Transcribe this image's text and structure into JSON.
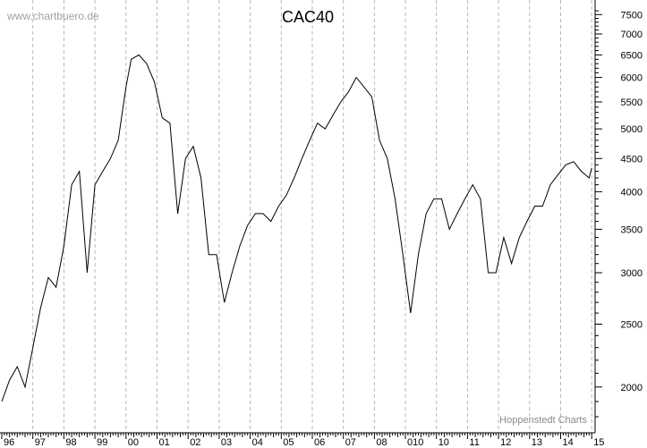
{
  "watermark": "www.chartbuero.de",
  "credit": "Hoppenstedt Charts",
  "chart_data": {
    "type": "line",
    "title": "CAC40",
    "xlabel": "",
    "ylabel": "",
    "y_scale": "log",
    "ylim": [
      1700,
      7700
    ],
    "grid": "vertical dashed at year boundaries",
    "line_color": "#000000",
    "x_tick_labels": [
      "96",
      "97",
      "98",
      "99",
      "00",
      "01",
      "02",
      "03",
      "04",
      "05",
      "06",
      "07",
      "08",
      "010",
      "10",
      "11",
      "12",
      "13",
      "14",
      "15"
    ],
    "y_tick_labels": [
      "2000",
      "2500",
      "3000",
      "3500",
      "4000",
      "4500",
      "5000",
      "5500",
      "6000",
      "6500",
      "7000",
      "7500"
    ],
    "y_tick_values": [
      2000,
      2500,
      3000,
      3500,
      4000,
      4500,
      5000,
      5500,
      6000,
      6500,
      7000,
      7500
    ],
    "series": [
      {
        "x": [
          "1996-01",
          "1996-04",
          "1996-07",
          "1996-10",
          "1997-01",
          "1997-04",
          "1997-07",
          "1997-10",
          "1998-01",
          "1998-04",
          "1998-07",
          "1998-10",
          "1999-01",
          "1999-04",
          "1999-07",
          "1999-10",
          "2000-01",
          "2000-03",
          "2000-06",
          "2000-09",
          "2000-12",
          "2001-03",
          "2001-06",
          "2001-09",
          "2001-12",
          "2002-03",
          "2002-06",
          "2002-09",
          "2002-12",
          "2003-03",
          "2003-06",
          "2003-09",
          "2003-12",
          "2004-03",
          "2004-06",
          "2004-09",
          "2004-12",
          "2005-03",
          "2005-06",
          "2005-09",
          "2005-12",
          "2006-03",
          "2006-06",
          "2006-09",
          "2006-12",
          "2007-03",
          "2007-06",
          "2007-09",
          "2007-12",
          "2008-03",
          "2008-06",
          "2008-09",
          "2008-12",
          "2009-03",
          "2009-06",
          "2009-09",
          "2009-12",
          "2010-03",
          "2010-06",
          "2010-09",
          "2010-12",
          "2011-03",
          "2011-06",
          "2011-09",
          "2011-12",
          "2012-03",
          "2012-06",
          "2012-09",
          "2012-12",
          "2013-03",
          "2013-06",
          "2013-09",
          "2013-12",
          "2014-03",
          "2014-06",
          "2014-09",
          "2014-12",
          "2015-01"
        ],
        "values": [
          1900,
          2050,
          2150,
          2000,
          2300,
          2650,
          2950,
          2850,
          3300,
          4100,
          4300,
          3000,
          4100,
          4300,
          4500,
          4800,
          5800,
          6400,
          6500,
          6300,
          5900,
          5200,
          5100,
          3700,
          4500,
          4700,
          4200,
          3200,
          3200,
          2700,
          3000,
          3300,
          3550,
          3700,
          3700,
          3600,
          3800,
          3950,
          4200,
          4500,
          4800,
          5100,
          5000,
          5250,
          5500,
          5700,
          6000,
          5800,
          5600,
          4800,
          4500,
          3900,
          3200,
          2600,
          3200,
          3700,
          3900,
          3900,
          3500,
          3700,
          3900,
          4100,
          3900,
          3000,
          3000,
          3400,
          3100,
          3400,
          3600,
          3800,
          3800,
          4100,
          4250,
          4400,
          4450,
          4300,
          4200,
          4350
        ]
      }
    ]
  }
}
